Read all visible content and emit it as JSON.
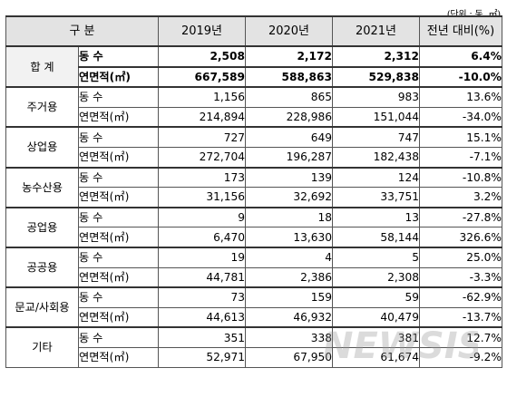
{
  "unit_note": "(단위 : 동, ㎡)",
  "headers": [
    "구  분",
    "2019년",
    "2020년",
    "2021년",
    "전년 대비(%)"
  ],
  "rows": [
    {
      "category": "합  계",
      "count": {
        "label": "동    수",
        "y2019": "2,508",
        "y2020": "2,172",
        "y2021": "2,312",
        "change": "6.4%"
      },
      "area": {
        "label": "연면적(㎡)",
        "y2019": "667,589",
        "y2020": "588,863",
        "y2021": "529,838",
        "change": "-10.0%"
      }
    },
    {
      "category": "주거용",
      "count": {
        "label": "동    수",
        "y2019": "1,156",
        "y2020": "865",
        "y2021": "983",
        "change": "13.6%"
      },
      "area": {
        "label": "연면적(㎡)",
        "y2019": "214,894",
        "y2020": "228,986",
        "y2021": "151,044",
        "change": "-34.0%"
      }
    },
    {
      "category": "상업용",
      "count": {
        "label": "동    수",
        "y2019": "727",
        "y2020": "649",
        "y2021": "747",
        "change": "15.1%"
      },
      "area": {
        "label": "연면적(㎡)",
        "y2019": "272,704",
        "y2020": "196,287",
        "y2021": "182,438",
        "change": "-7.1%"
      }
    },
    {
      "category": "농수산용",
      "count": {
        "label": "동    수",
        "y2019": "173",
        "y2020": "139",
        "y2021": "124",
        "change": "-10.8%"
      },
      "area": {
        "label": "연면적(㎡)",
        "y2019": "31,156",
        "y2020": "32,692",
        "y2021": "33,751",
        "change": "3.2%"
      }
    },
    {
      "category": "공업용",
      "count": {
        "label": "동    수",
        "y2019": "9",
        "y2020": "18",
        "y2021": "13",
        "change": "-27.8%"
      },
      "area": {
        "label": "연면적(㎡)",
        "y2019": "6,470",
        "y2020": "13,630",
        "y2021": "58,144",
        "change": "326.6%"
      }
    },
    {
      "category": "공공용",
      "count": {
        "label": "동    수",
        "y2019": "19",
        "y2020": "4",
        "y2021": "5",
        "change": "25.0%"
      },
      "area": {
        "label": "연면적(㎡)",
        "y2019": "44,781",
        "y2020": "2,386",
        "y2021": "2,308",
        "change": "-3.3%"
      }
    },
    {
      "category": "문교/사회용",
      "count": {
        "label": "동    수",
        "y2019": "73",
        "y2020": "159",
        "y2021": "59",
        "change": "-62.9%"
      },
      "area": {
        "label": "연면적(㎡)",
        "y2019": "44,613",
        "y2020": "46,932",
        "y2021": "40,479",
        "change": "-13.7%"
      }
    },
    {
      "category": "기타",
      "count": {
        "label": "동    수",
        "y2019": "351",
        "y2020": "338",
        "y2021": "381",
        "change": "12.7%"
      },
      "area": {
        "label": "연면적(㎡)",
        "y2019": "52,971",
        "y2020": "67,950",
        "y2021": "61,674",
        "change": "-9.2%"
      }
    }
  ],
  "watermark": {
    "text": "NEWSIS",
    "color": "#9a9a9a"
  }
}
